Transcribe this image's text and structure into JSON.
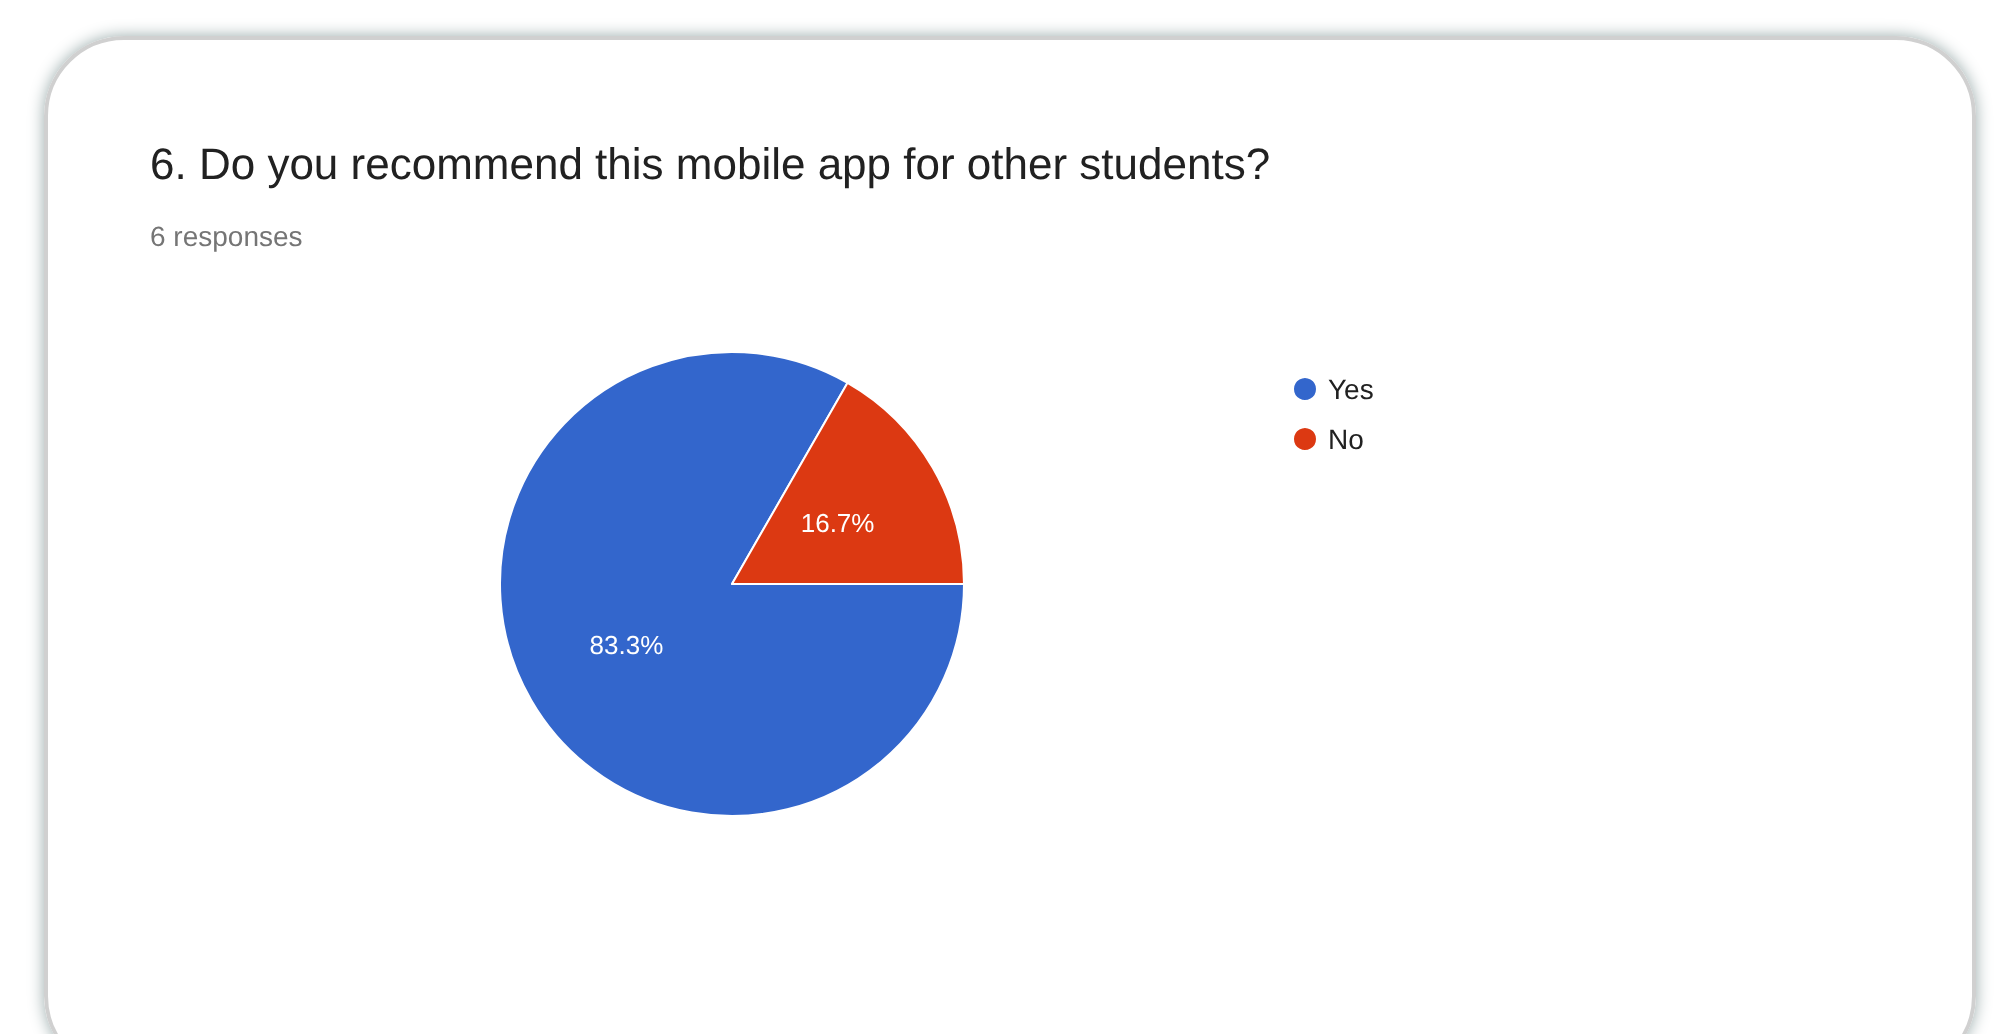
{
  "chart_data": {
    "type": "pie",
    "title": "6. Do you recommend this mobile app for other students?",
    "subtitle": "6 responses",
    "categories": [
      "Yes",
      "No"
    ],
    "values": [
      83.3,
      16.7
    ],
    "colors": [
      "#3366cc",
      "#dc3912"
    ],
    "value_labels": [
      "83.3%",
      "16.7%"
    ],
    "legend": "right"
  }
}
